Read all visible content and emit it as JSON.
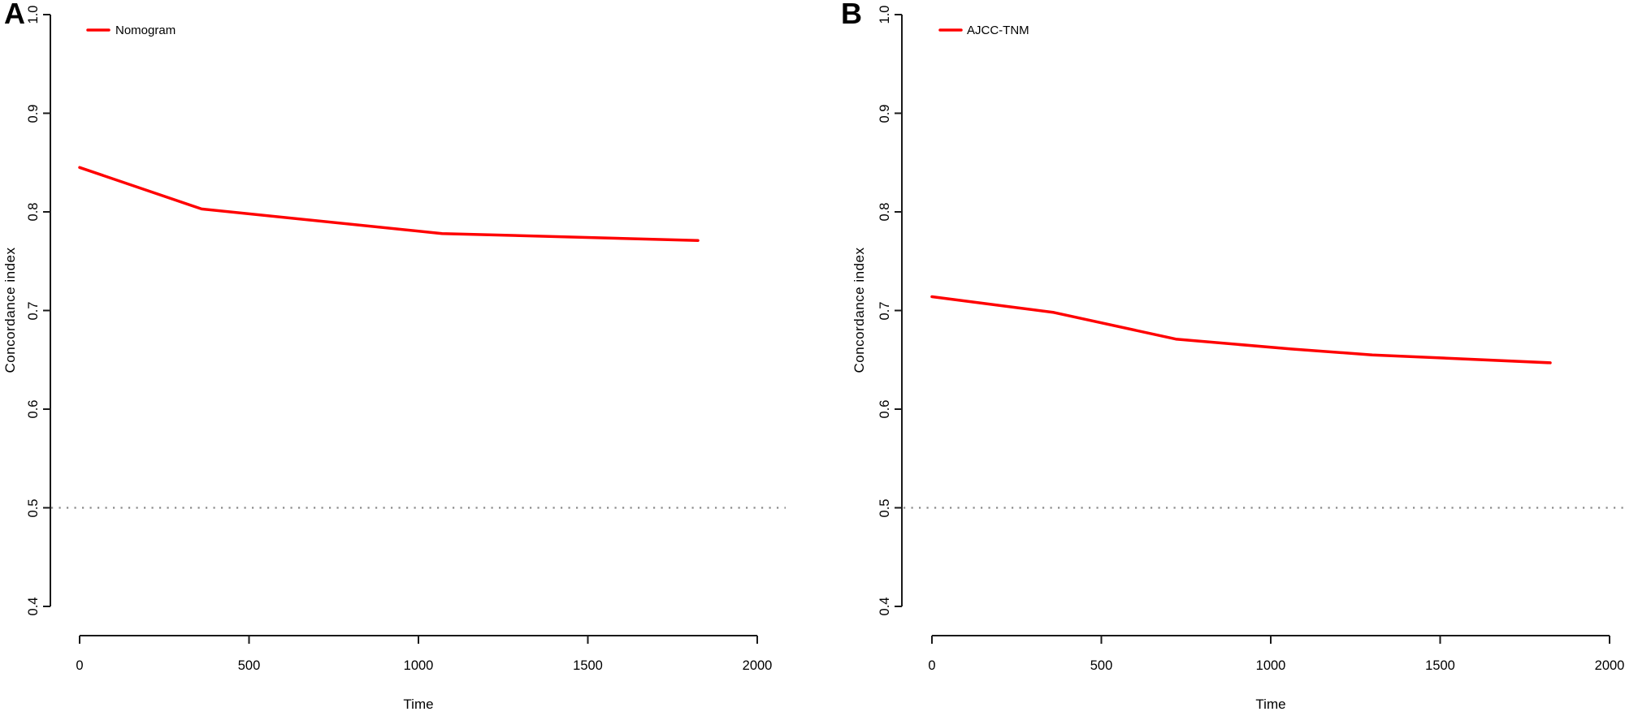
{
  "figure": {
    "background": "#FFFFFF",
    "accent_color": "#FF0000",
    "reference_color": "#8A8A8A",
    "axis_color": "#1A1A1A"
  },
  "chart_data": [
    {
      "type": "line",
      "panel_label": "A",
      "title": "",
      "xlabel": "Time",
      "ylabel": "Concordance index",
      "xlim": [
        0,
        2000
      ],
      "ylim": [
        0.4,
        1.0
      ],
      "grid": false,
      "x_ticks": [
        0,
        500,
        1000,
        1500,
        2000
      ],
      "x_tick_labels": [
        "0",
        "500",
        "1000",
        "1500",
        "2000"
      ],
      "y_ticks": [
        1.0,
        0.9,
        0.8,
        0.7,
        0.6,
        0.5,
        0.4
      ],
      "y_tick_labels": [
        "1.0",
        "0.9",
        "0.8",
        "0.7",
        "0.6",
        "0.5",
        "0.4"
      ],
      "legend": {
        "position": "topleft",
        "label": "Nomogram",
        "color": "#FF0000"
      },
      "reference_line": {
        "y": 0.5,
        "style": "dotted",
        "color": "#8A8A8A"
      },
      "series": [
        {
          "name": "Nomogram",
          "color": "#FF0000",
          "points": [
            [
              0,
              0.845
            ],
            [
              360,
              0.803
            ],
            [
              1070,
              0.778
            ],
            [
              1825,
              0.771
            ]
          ]
        }
      ]
    },
    {
      "type": "line",
      "panel_label": "B",
      "title": "",
      "xlabel": "Time",
      "ylabel": "Concordance index",
      "xlim": [
        0,
        2000
      ],
      "ylim": [
        0.4,
        1.0
      ],
      "grid": false,
      "x_ticks": [
        0,
        500,
        1000,
        1500,
        2000
      ],
      "x_tick_labels": [
        "0",
        "500",
        "1000",
        "1500",
        "2000"
      ],
      "y_ticks": [
        1.0,
        0.9,
        0.8,
        0.7,
        0.6,
        0.5,
        0.4
      ],
      "y_tick_labels": [
        "1.0",
        "0.9",
        "0.8",
        "0.7",
        "0.6",
        "0.5",
        "0.4"
      ],
      "legend": {
        "position": "topleft",
        "label": "AJCC-TNM",
        "color": "#FF0000"
      },
      "reference_line": {
        "y": 0.5,
        "style": "dotted",
        "color": "#8A8A8A"
      },
      "series": [
        {
          "name": "AJCC-TNM",
          "color": "#FF0000",
          "points": [
            [
              0,
              0.714
            ],
            [
              360,
              0.698
            ],
            [
              720,
              0.671
            ],
            [
              1060,
              0.661
            ],
            [
              1300,
              0.655
            ],
            [
              1825,
              0.647
            ]
          ]
        }
      ]
    }
  ]
}
